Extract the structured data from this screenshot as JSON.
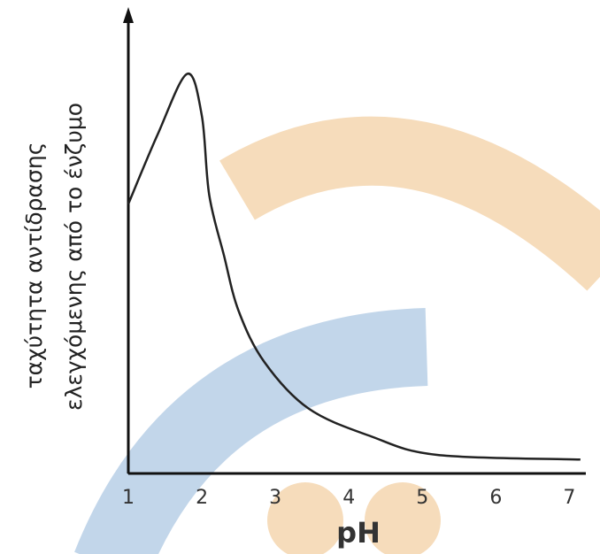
{
  "chart_data": {
    "type": "line",
    "ylabel_lines": [
      "ταχύτητα αντίδρασης",
      "ελεγχόμενης από το ένζυμο"
    ],
    "xlabel": "pH",
    "x": [
      1,
      1.4,
      1.8,
      2.0,
      2.1,
      2.3,
      2.5,
      2.85,
      3.45,
      4.3,
      5.2,
      7.15
    ],
    "values": [
      58,
      73,
      86,
      77,
      60,
      47,
      35,
      24,
      14,
      8,
      4,
      3
    ],
    "color": "#222222",
    "xlim": [
      1,
      7.2
    ],
    "xticks": [
      1,
      2,
      3,
      4,
      5,
      6,
      7
    ],
    "ylim": [
      0,
      100
    ]
  }
}
